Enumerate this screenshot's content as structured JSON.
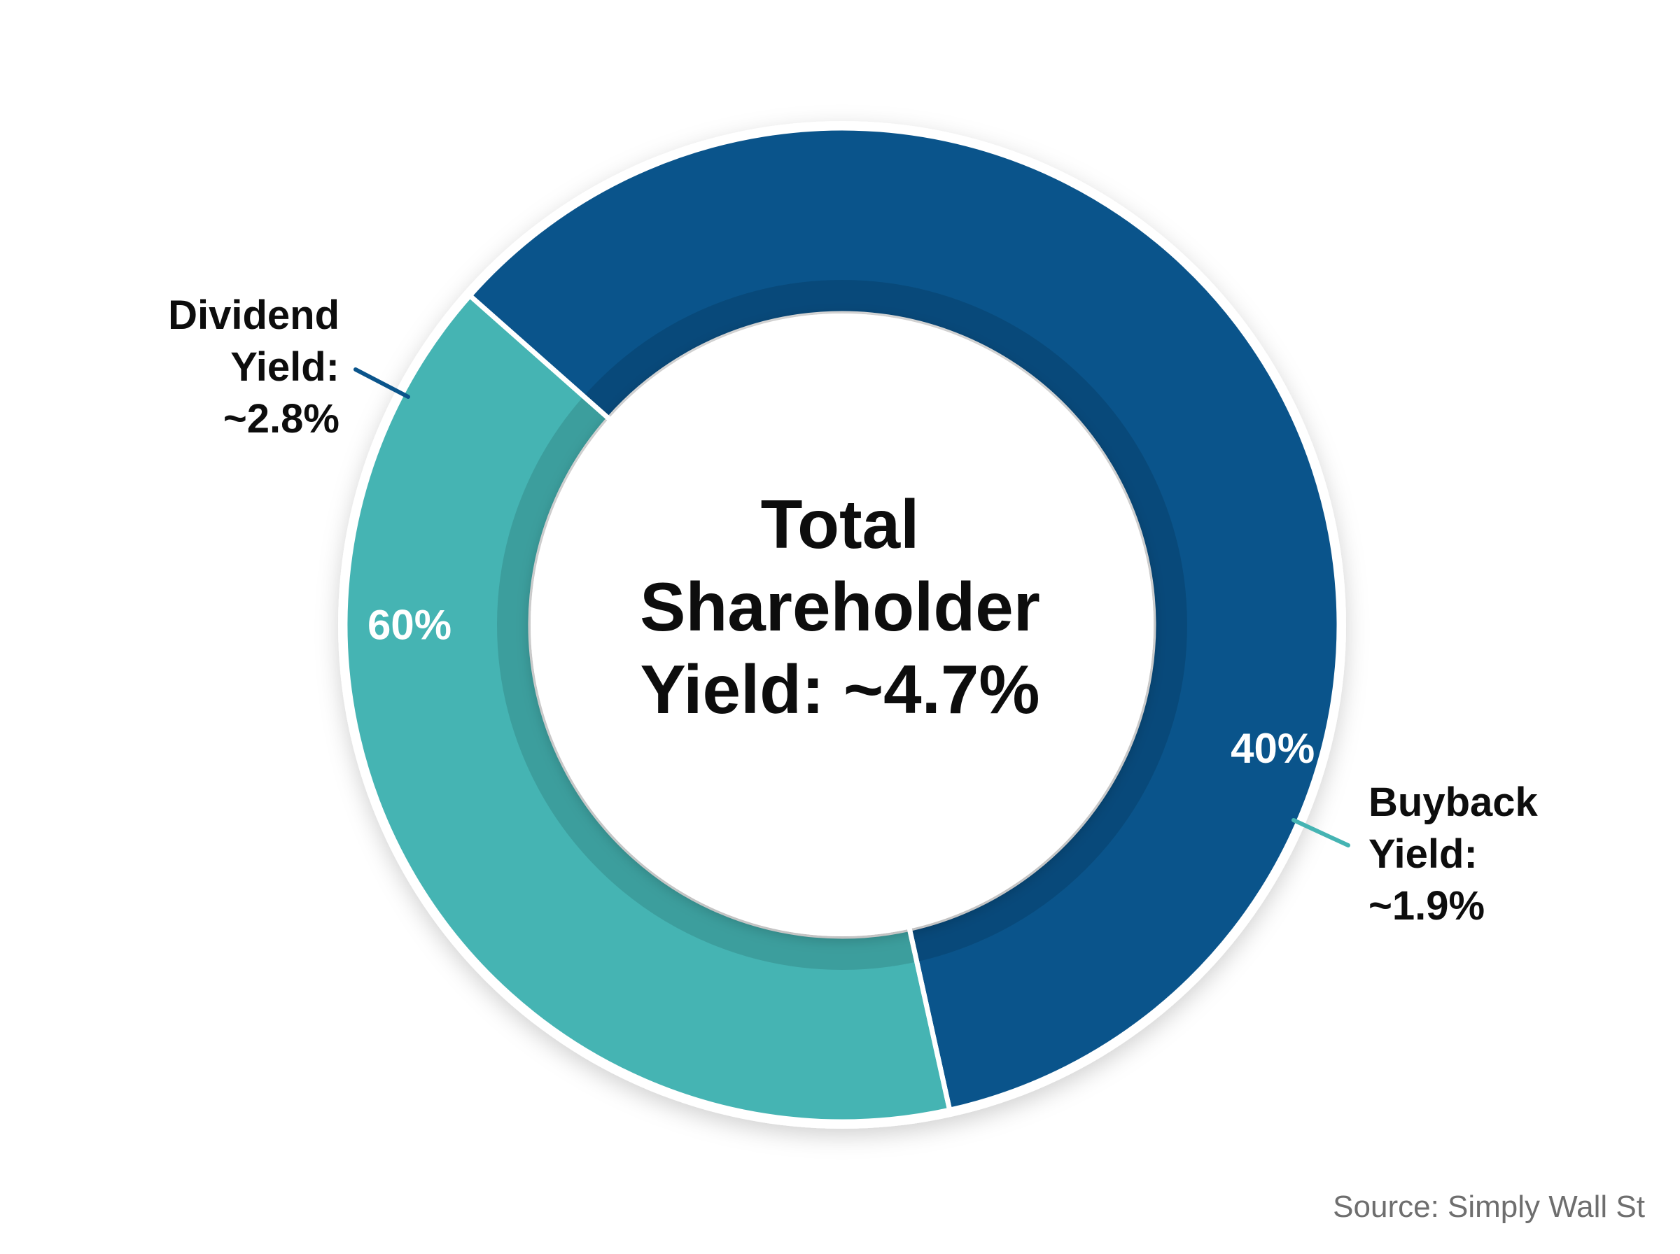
{
  "chart_data": {
    "type": "pie",
    "variant": "donut",
    "center_title": [
      "Total",
      "Shareholder",
      "Yield: ~4.7%"
    ],
    "series": [
      {
        "name": "Dividend Yield",
        "value": 60,
        "value_label": "60%",
        "callout_lines": [
          "Dividend",
          "Yield:",
          "~2.8%"
        ],
        "color": "#0a548b"
      },
      {
        "name": "Buyback Yield",
        "value": 40,
        "value_label": "40%",
        "callout_lines": [
          "Buyback",
          "Yield:",
          "~1.9%"
        ],
        "color": "#45b4b3"
      }
    ],
    "source": "Source: Simply Wall St"
  }
}
